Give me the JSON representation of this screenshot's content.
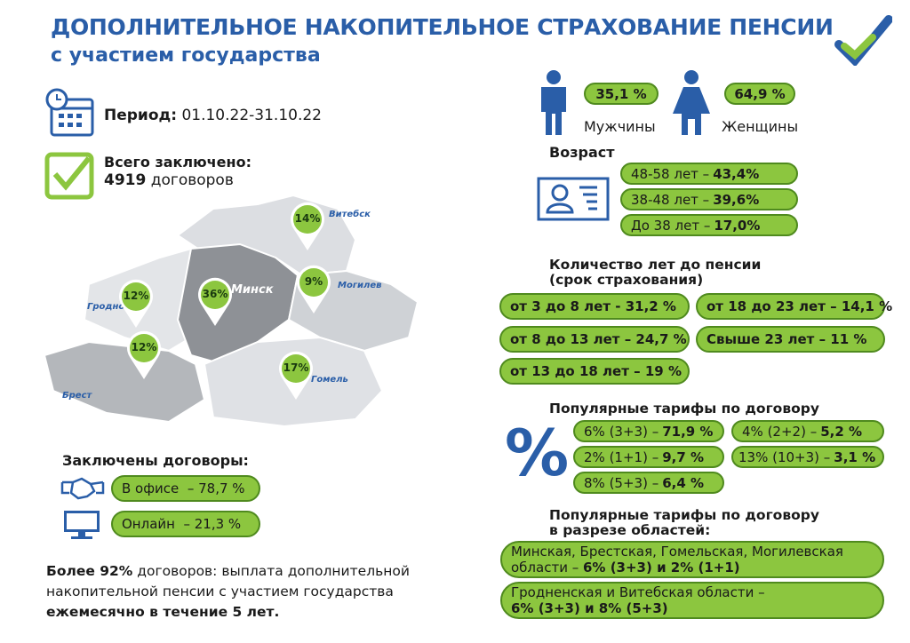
{
  "title": {
    "line1": "ДОПОЛНИТЕЛЬНОЕ НАКОПИТЕЛЬНОЕ СТРАХОВАНИЕ ПЕНСИИ",
    "line2": "с участием государства"
  },
  "period": {
    "label": "Период:",
    "value": "01.10.22-31.10.22"
  },
  "total": {
    "label": "Всего заключено:",
    "count": "4919",
    "unit": "договоров"
  },
  "map": {
    "regions": [
      {
        "city": "Витебск",
        "percent": "14%"
      },
      {
        "city": "Минск",
        "percent": "36%"
      },
      {
        "city": "Могилев",
        "percent": "9%"
      },
      {
        "city": "Гродно",
        "percent": "12%"
      },
      {
        "city": "Брест",
        "percent": "12%"
      },
      {
        "city": "Гомель",
        "percent": "17%"
      }
    ]
  },
  "channels": {
    "heading": "Заключены договоры:",
    "items": [
      {
        "label": "В офисе",
        "value": "– 78,7 %",
        "icon": "handshake-icon"
      },
      {
        "label": "Онлайн",
        "value": "– 21,3 %",
        "icon": "monitor-icon"
      }
    ]
  },
  "footer": {
    "line1_bold": "Более 92%",
    "line1": "договоров:  выплата дополнительной",
    "line2": "накопительной пенсии с участием государства",
    "line3_bold": "ежемесячно в течение 5 лет."
  },
  "gender": {
    "male": {
      "value": "35,1 %",
      "label": "Мужчины"
    },
    "female": {
      "value": "64,9 %",
      "label": "Женщины"
    }
  },
  "age": {
    "heading": "Возраст",
    "items": [
      {
        "label": "48-58 лет –",
        "value": "43,4%"
      },
      {
        "label": "38-48 лет –",
        "value": "39,6%"
      },
      {
        "label": "До 38 лет –",
        "value": "17,0%"
      }
    ]
  },
  "years": {
    "heading": "Количество лет до пенсии",
    "subheading": "(срок страхования)",
    "items": [
      "от 3 до 8 лет - 31,2 %",
      "от 18 до 23 лет – 14,1 %",
      "от 8 до 13 лет – 24,7 %",
      "Свыше 23 лет – 11 %",
      "от 13 до 18 лет – 19 %"
    ]
  },
  "tariffs": {
    "heading": "Популярные тарифы по договору",
    "items": [
      {
        "label": "6% (3+3) –",
        "value": "71,9 %"
      },
      {
        "label": "4% (2+2) –",
        "value": "5,2 %"
      },
      {
        "label": "2% (1+1) –",
        "value": "9,7 %"
      },
      {
        "label": "13% (10+3) –",
        "value": "3,1 %"
      },
      {
        "label": "8% (5+3) –",
        "value": "6,4 %"
      }
    ]
  },
  "regional": {
    "heading1": "Популярные тарифы по договору",
    "heading2": "в разрезе областей:",
    "items": [
      {
        "line1": "Минская, Брестская, Гомельская, Могилевская",
        "line2_normal": "области –",
        "line2_bold": "6% (3+3) и 2% (1+1)"
      },
      {
        "line1": "Гродненская и Витебская области –",
        "line2_normal": "",
        "line2_bold": "6% (3+3) и 8% (5+3)"
      }
    ]
  },
  "colors": {
    "blue": "#2a5ea8",
    "green": "#8cc63f",
    "green_border": "#4f8a1e"
  }
}
